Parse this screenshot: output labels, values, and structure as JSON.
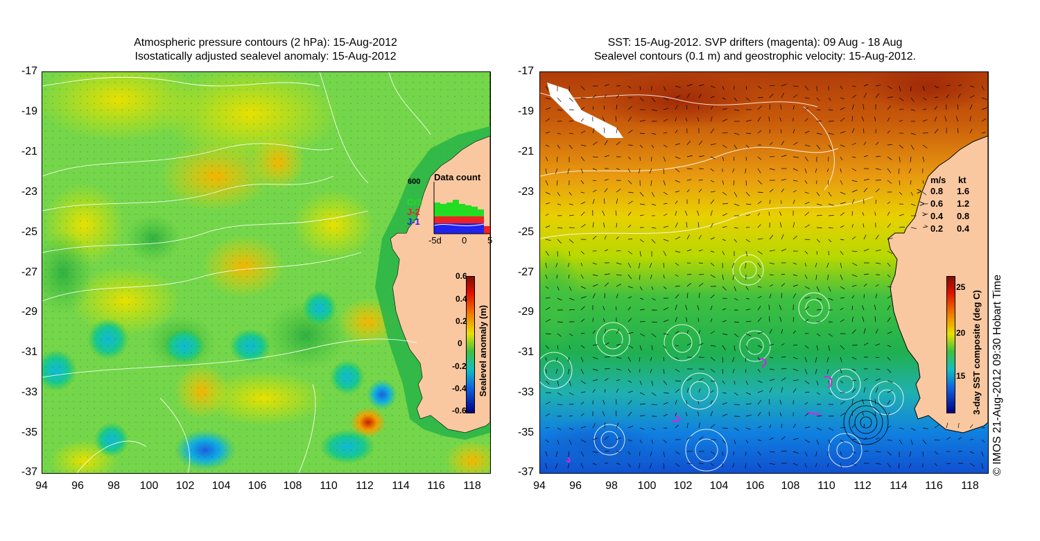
{
  "left_map": {
    "title_line1": "Atmospheric pressure contours (2 hPa): 15-Aug-2012",
    "title_line2": "Isostatically adjusted sealevel anomaly: 15-Aug-2012",
    "y_ticks": [
      "-17",
      "-19",
      "-21",
      "-23",
      "-25",
      "-27",
      "-29",
      "-31",
      "-33",
      "-35",
      "-37"
    ],
    "x_ticks": [
      "94",
      "96",
      "98",
      "100",
      "102",
      "104",
      "106",
      "108",
      "110",
      "112",
      "114",
      "116",
      "118"
    ],
    "data_count": {
      "title": "Data count",
      "max_label": "600",
      "legend": [
        "Cr2",
        "J-2",
        "J-1"
      ],
      "legend_colors": [
        "#22dd22",
        "#ee2222",
        "#2222ee"
      ],
      "x_labels": [
        "-5d",
        "0",
        "5"
      ]
    },
    "colorbar": {
      "label": "Sealevel anomaly (m)",
      "ticks": [
        "0.6",
        "0.4",
        "0.2",
        "0",
        "-0.2",
        "-0.4",
        "-0.6"
      ]
    }
  },
  "right_map": {
    "title_line1": "SST: 15-Aug-2012. SVP drifters (magenta): 09 Aug - 18 Aug",
    "title_line2": "Sealevel contours (0.1 m) and geostrophic velocity: 15-Aug-2012.",
    "y_ticks": [
      "-17",
      "-19",
      "-21",
      "-23",
      "-25",
      "-27",
      "-29",
      "-31",
      "-33",
      "-35",
      "-37"
    ],
    "x_ticks": [
      "94",
      "96",
      "98",
      "100",
      "102",
      "104",
      "106",
      "108",
      "110",
      "112",
      "114",
      "116",
      "118"
    ],
    "velocity_legend": {
      "header_ms": "m/s",
      "header_kt": "kt",
      "rows": [
        [
          "0.8",
          "1.6"
        ],
        [
          "0.6",
          "1.2"
        ],
        [
          "0.4",
          "0.8"
        ],
        [
          "0.2",
          "0.4"
        ]
      ]
    },
    "colorbar": {
      "label": "3-day SST composite (deg C)",
      "ticks": [
        "25",
        "20",
        "15"
      ]
    }
  },
  "credit": "© IMOS 21-Aug-2012 09:30 Hobart Time",
  "colors": {
    "land": "#fac8a0",
    "coast": "#000000",
    "contour": "#ffffff"
  }
}
